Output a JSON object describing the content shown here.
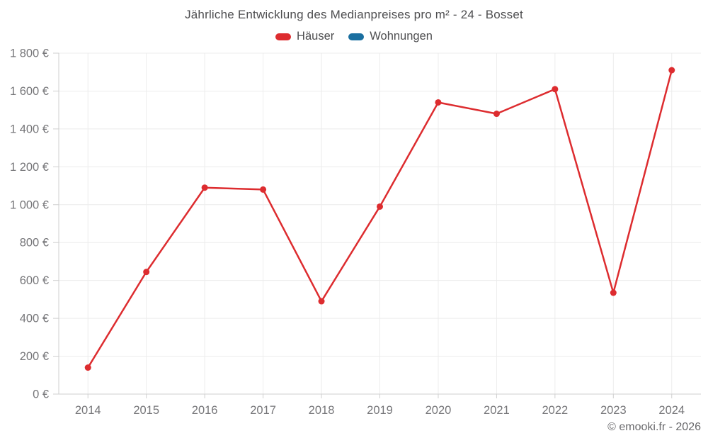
{
  "title": "Jährliche Entwicklung des Medianpreises pro m² - 24 - Bosset",
  "footer": "© emooki.fr - 2026",
  "legend": [
    {
      "label": "Häuser",
      "color": "#dd2c2f"
    },
    {
      "label": "Wohnungen",
      "color": "#1a6fa0"
    }
  ],
  "colors": {
    "grid": "#ececec",
    "axis": "#cfcfcf",
    "tick": "#cfcfcf",
    "tick_label": "#767679",
    "title_text": "#4e4e50",
    "footer_text": "#68686b",
    "background": "#ffffff"
  },
  "chart_data": {
    "type": "line",
    "title": "Jährliche Entwicklung des Medianpreises pro m² - 24 - Bosset",
    "x": [
      2014,
      2015,
      2016,
      2017,
      2018,
      2019,
      2020,
      2021,
      2022,
      2023,
      2024
    ],
    "series": [
      {
        "name": "Häuser",
        "color": "#dd2c2f",
        "values": [
          140,
          645,
          1090,
          1080,
          490,
          990,
          1540,
          1480,
          1610,
          535,
          1710
        ]
      },
      {
        "name": "Wohnungen",
        "color": "#1a6fa0",
        "values": []
      }
    ],
    "xlabel": "",
    "ylabel": "",
    "ylim": [
      0,
      1800
    ],
    "ytick_step": 200,
    "ytick_suffix": " €",
    "grid": true,
    "legend_position": "top",
    "marker_radius": 4.5,
    "line_width": 2.5
  }
}
